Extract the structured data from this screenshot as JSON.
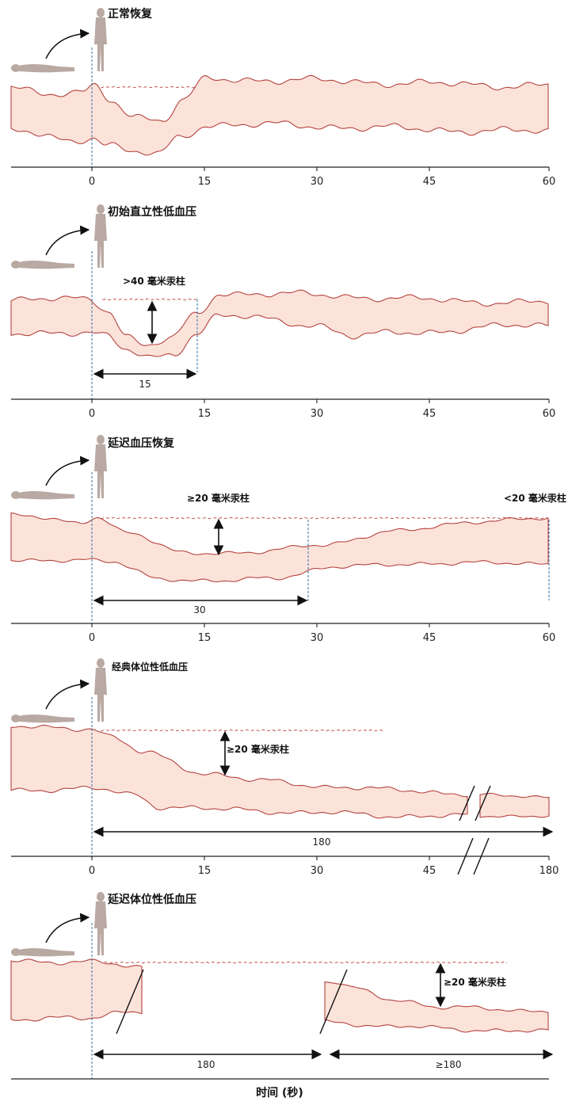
{
  "panels": [
    {
      "title": "正常恢复",
      "ticks": [
        "0",
        "15",
        "30",
        "45",
        "60"
      ],
      "annotations": []
    },
    {
      "title": "初始直立性低血压",
      "ticks": [
        "0",
        "15",
        "30",
        "45",
        "60"
      ],
      "annotations": [
        ">40 毫米汞柱",
        "15"
      ]
    },
    {
      "title": "延迟血压恢复",
      "ticks": [
        "0",
        "15",
        "30",
        "45",
        "60"
      ],
      "annotations": [
        "≥20 毫米汞柱",
        "<20 毫米汞柱",
        "30"
      ]
    },
    {
      "title": "经典体位性低血压",
      "ticks": [
        "0",
        "15",
        "30",
        "45",
        "180"
      ],
      "annotations": [
        "≥20 毫米汞柱",
        "180"
      ]
    },
    {
      "title": "延迟体位性低血压",
      "ticks": [],
      "annotations": [
        "≥20 毫米汞柱",
        "180",
        "≥180"
      ]
    }
  ],
  "x_axis_label": "时间 (秒)",
  "colors": {
    "band_fill": "#fbe3da",
    "band_stroke": "#b5443f",
    "dashed": "#c0504d",
    "guide": "#2d6fa3",
    "figure": "#b9a9a3",
    "axis": "#222222"
  }
}
